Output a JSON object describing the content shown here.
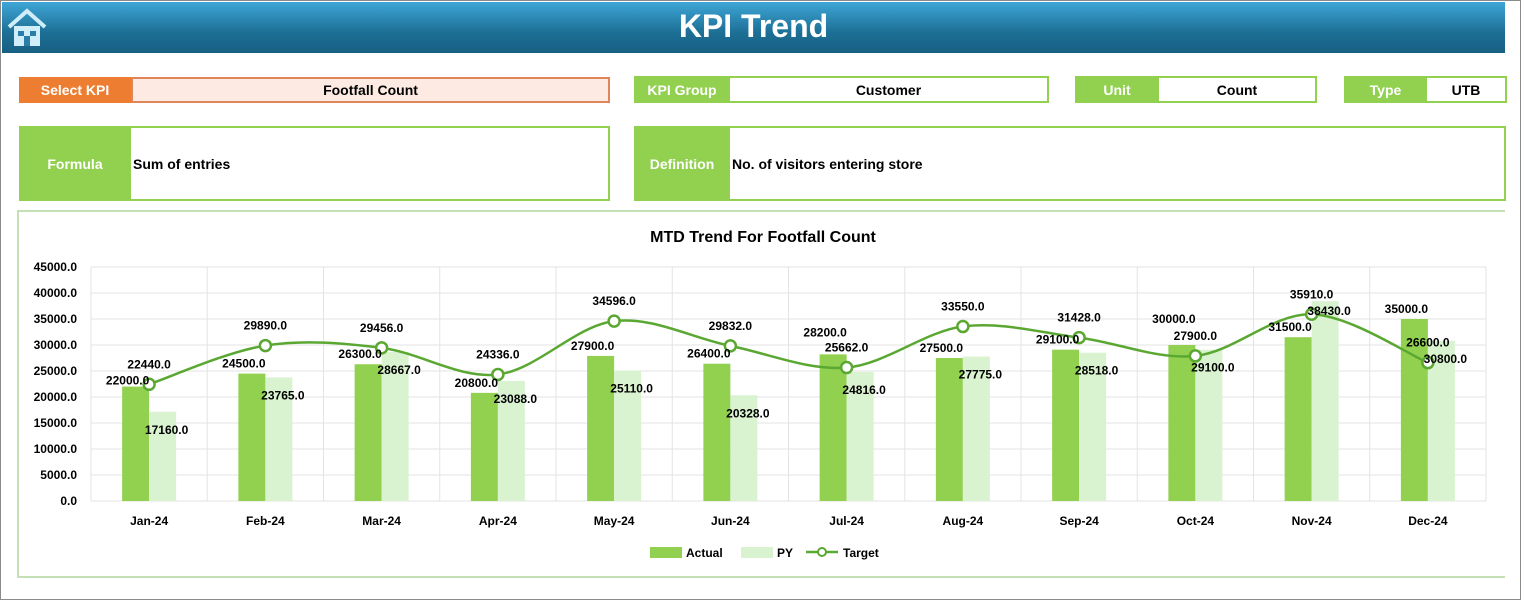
{
  "header": {
    "title": "KPI Trend",
    "home_icon": "home-icon"
  },
  "fields": {
    "select_kpi_label": "Select KPI",
    "select_kpi_value": "Footfall Count",
    "kpi_group_label": "KPI Group",
    "kpi_group_value": "Customer",
    "unit_label": "Unit",
    "unit_value": "Count",
    "type_label": "Type",
    "type_value": "UTB",
    "formula_label": "Formula",
    "formula_value": "Sum of entries",
    "definition_label": "Definition",
    "definition_value": "No. of visitors entering store"
  },
  "colors": {
    "header": "#1d6f95",
    "accent_orange": "#ed7d31",
    "accent_green": "#92d050",
    "actual": "#92d050",
    "py": "#d9f2d0",
    "target": "#5aa832"
  },
  "chart_data": {
    "type": "bar",
    "title": "MTD Trend For Footfall Count",
    "categories": [
      "Jan-24",
      "Feb-24",
      "Mar-24",
      "Apr-24",
      "May-24",
      "Jun-24",
      "Jul-24",
      "Aug-24",
      "Sep-24",
      "Oct-24",
      "Nov-24",
      "Dec-24"
    ],
    "yticks": [
      "0.0",
      "5000.0",
      "10000.0",
      "15000.0",
      "20000.0",
      "25000.0",
      "30000.0",
      "35000.0",
      "40000.0",
      "45000.0"
    ],
    "ylim": [
      0,
      45000
    ],
    "grid": true,
    "legend": "bottom",
    "series": [
      {
        "name": "Actual",
        "type": "bar",
        "values": [
          22000,
          24500,
          26300,
          20800,
          27900,
          26400,
          28200,
          27500,
          29100,
          30000,
          31500,
          35000
        ]
      },
      {
        "name": "PY",
        "type": "bar",
        "values": [
          17160,
          23765,
          28667,
          23088,
          25110,
          20328,
          24816,
          27775,
          28518,
          29100,
          38430,
          30800
        ]
      },
      {
        "name": "Target",
        "type": "line",
        "values": [
          22440,
          29890,
          29456,
          24336,
          34596,
          29832,
          25662,
          33550,
          31428,
          27900,
          35910,
          26600
        ]
      }
    ]
  }
}
